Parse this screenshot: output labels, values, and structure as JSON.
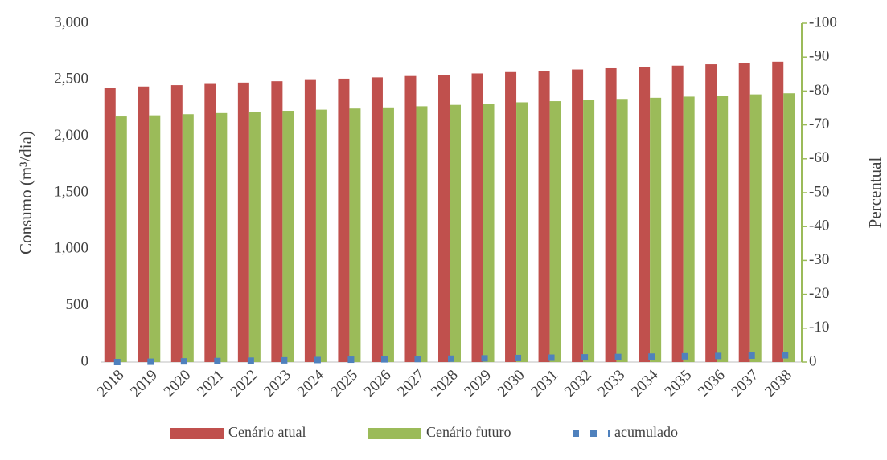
{
  "chart_data": {
    "type": "bar",
    "categories": [
      "2018",
      "2019",
      "2020",
      "2021",
      "2022",
      "2023",
      "2024",
      "2025",
      "2026",
      "2027",
      "2028",
      "2029",
      "2030",
      "2031",
      "2032",
      "2033",
      "2034",
      "2035",
      "2036",
      "2037",
      "2038"
    ],
    "series": [
      {
        "name": "Cenário atual",
        "color": "#c0504d",
        "values": [
          2430,
          2440,
          2452,
          2463,
          2475,
          2487,
          2498,
          2510,
          2521,
          2533,
          2545,
          2556,
          2568,
          2579,
          2591,
          2602,
          2614,
          2625,
          2637,
          2648,
          2660
        ]
      },
      {
        "name": "Cenário futuro",
        "color": "#9bbb59",
        "values": [
          2175,
          2185,
          2195,
          2205,
          2215,
          2225,
          2235,
          2245,
          2255,
          2265,
          2277,
          2289,
          2300,
          2310,
          2320,
          2330,
          2340,
          2350,
          2360,
          2370,
          2380
        ]
      },
      {
        "name": "acumulado",
        "color": "#4f81bd",
        "axis": "y2",
        "type": "scatter",
        "values": [
          0,
          -0.1,
          -0.2,
          -0.3,
          -0.4,
          -0.5,
          -0.6,
          -0.7,
          -0.8,
          -0.9,
          -1.0,
          -1.1,
          -1.2,
          -1.3,
          -1.4,
          -1.5,
          -1.6,
          -1.7,
          -1.8,
          -1.9,
          -2.0
        ]
      }
    ],
    "y_label": "Consumo (m³/dia)",
    "y2_label": "Percentual",
    "ylim": [
      0,
      3000
    ],
    "yticks": [
      0,
      {
        "value": 500,
        "label": "500"
      },
      {
        "value": 1000,
        "label": "1,000"
      },
      {
        "value": 1500,
        "label": "1,500"
      },
      {
        "value": 2000,
        "label": "2,000"
      },
      {
        "value": 2500,
        "label": "2,500"
      },
      {
        "value": 3000,
        "label": "3,000"
      }
    ],
    "y2lim": [
      0,
      -100
    ],
    "y2ticks": [
      0,
      -10,
      -20,
      -30,
      -40,
      -50,
      -60,
      -70,
      -80,
      -90,
      -100
    ],
    "legend": "bottom"
  }
}
